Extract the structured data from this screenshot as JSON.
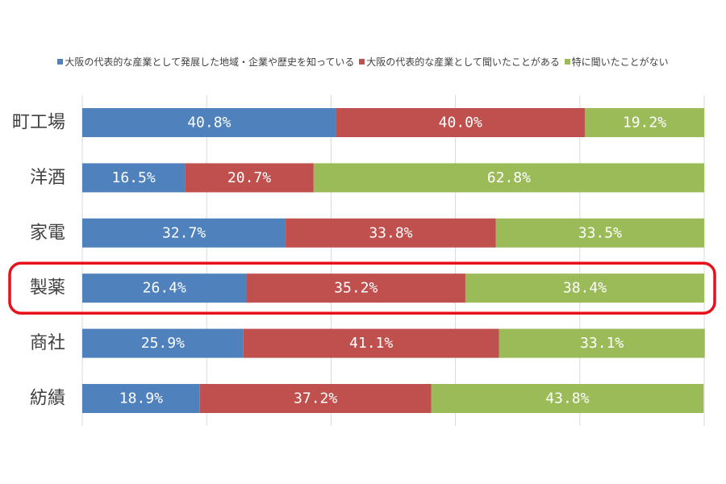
{
  "chart_data": {
    "type": "bar",
    "orientation": "horizontal",
    "stacked": "100%",
    "categories": [
      "町工場",
      "洋酒",
      "家電",
      "製薬",
      "商社",
      "紡績"
    ],
    "series": [
      {
        "name": "大阪の代表的な産業として発展した地域・企業や歴史を知っている",
        "color": "#4f81bd",
        "values": [
          40.8,
          16.5,
          32.7,
          26.4,
          25.9,
          18.9
        ],
        "labels": [
          "40.8%",
          "16.5%",
          "32.7%",
          "26.4%",
          "25.9%",
          "18.9%"
        ]
      },
      {
        "name": "大阪の代表的な産業として聞いたことがある",
        "color": "#c0504d",
        "values": [
          40.0,
          20.7,
          33.8,
          35.2,
          41.1,
          37.2
        ],
        "labels": [
          "40.0%",
          "20.7%",
          "33.8%",
          "35.2%",
          "41.1%",
          "37.2%"
        ]
      },
      {
        "name": "特に聞いたことがない",
        "color": "#9bbb59",
        "values": [
          19.2,
          62.8,
          33.5,
          38.4,
          33.1,
          43.8
        ],
        "labels": [
          "19.2%",
          "62.8%",
          "33.5%",
          "38.4%",
          "33.1%",
          "43.8%"
        ]
      }
    ],
    "xlim": [
      0,
      100
    ],
    "grid": true,
    "legend_position": "top",
    "highlight": {
      "category": "製薬",
      "color": "#e8101a"
    }
  }
}
